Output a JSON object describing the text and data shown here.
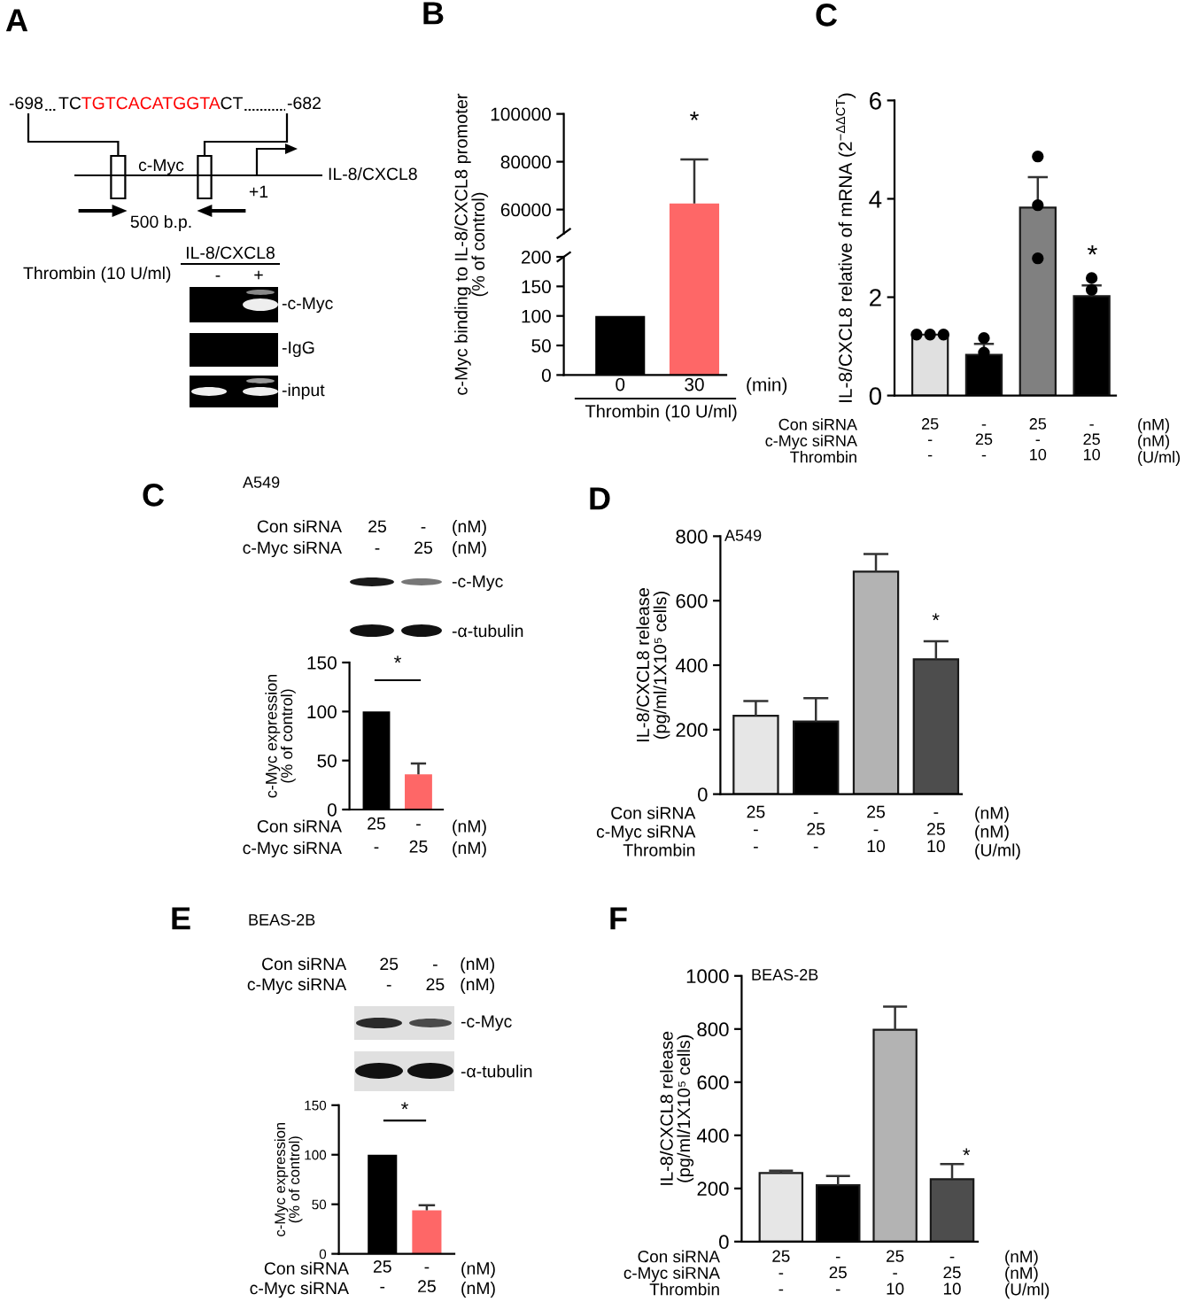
{
  "chart_data": [
    {
      "type": "other",
      "title": "A",
      "annotations": [
        "-698",
        "TC",
        "TGTCACATGGTA",
        "CT",
        "-682",
        "c-Myc",
        "IL-8/CXCL8",
        "+1",
        "500 b.p.",
        "IL-8/CXCL8",
        "Thrombin (10 U/ml)",
        "-",
        "+",
        "-c-Myc",
        "-IgG",
        "-input"
      ]
    },
    {
      "type": "bar",
      "title": "B",
      "ylabel": "c-Myc binding to IL-8/CXCL8 promoter\n(% of control)",
      "categories": [
        "0",
        "30"
      ],
      "values": [
        null,
        62500
      ],
      "colors": [
        "#000000",
        "#fe6767"
      ],
      "errors": [
        null,
        [
          62500,
          81000
        ]
      ],
      "ylim": [
        50000,
        100000
      ],
      "yticks": [
        60000,
        80000,
        100000
      ],
      "tick_labels": "y",
      "annotations": [
        "*"
      ]
    },
    {
      "type": "bar",
      "xlabel": "Thrombin (10 U/ml)",
      "categories": [
        "0",
        "30"
      ],
      "values": [
        100,
        null
      ],
      "colors": [
        "#000000",
        "#fe6767"
      ],
      "ylim": [
        0,
        200
      ],
      "yticks": [
        0,
        50,
        100,
        150,
        200
      ],
      "annotations": [
        "(min)"
      ]
    },
    {
      "type": "bar",
      "title": "C",
      "ylabel": "IL-8/CXCL8 relative of mRNA (2$^{−ΔΔCT}$)",
      "categories": [
        "25\n-\n-",
        "-\n25\n-",
        "25\n-\n10",
        "-\n25\n10"
      ],
      "series": [
        {
          "type": "bar",
          "colors": [
            "#e0e0e0",
            "#000000",
            "#808080",
            "#000000"
          ],
          "values": [
            1.24,
            0.83,
            3.82,
            2.02
          ],
          "errors": [
            null,
            [
              0.83,
              1.05
            ],
            [
              3.82,
              4.44
            ],
            [
              2.02,
              2.24
            ]
          ]
        },
        {
          "type": "scatter",
          "color": "#000000",
          "marker": "circle",
          "x": [
            "25\n-\n-",
            "25\n-\n-",
            "25\n-\n-",
            "-\n25\n-",
            "-\n25\n-",
            "25\n-\n10",
            "25\n-\n10",
            "25\n-\n10",
            "-\n25\n10",
            "-\n25\n10"
          ],
          "values": [
            1.24,
            1.24,
            1.24,
            1.17,
            0.87,
            4.86,
            3.87,
            2.79,
            2.39,
            2.15
          ]
        }
      ],
      "ylim": [
        0,
        6
      ],
      "yticks": [
        0,
        2,
        4,
        6
      ],
      "annotations": [
        "Con siRNA",
        "c-Myc siRNA",
        "Thrombin",
        "(nM)",
        "(nM)",
        "(U/ml)",
        "*"
      ]
    },
    {
      "type": "bar",
      "title": "C",
      "subtitle": "A549",
      "ylabel": "c-Myc expression\n(% of control)",
      "categories": [
        "25\n-",
        "-\n25"
      ],
      "values": [
        100,
        36
      ],
      "colors": [
        "#000000",
        "#fe6767"
      ],
      "errors": [
        null,
        [
          36,
          47
        ]
      ],
      "ylim": [
        0,
        150
      ],
      "yticks": [
        0,
        50,
        100,
        150
      ],
      "annotations": [
        "Con siRNA",
        "c-Myc siRNA",
        "(nM)",
        "(nM)",
        "*",
        "Con siRNA",
        "25",
        "-",
        "(nM)",
        "c-Myc siRNA",
        "-",
        "25",
        "(nM)",
        "-c-Myc",
        "-α-tubulin"
      ]
    },
    {
      "type": "bar",
      "title": "D",
      "subtitle": "A549",
      "ylabel": "IL-8/CXCL8 release\n(pg/ml/1X10⁵ cells)",
      "categories": [
        "25\n-\n-",
        "-\n25\n-",
        "25\n-\n10",
        "-\n25\n10"
      ],
      "values": [
        243,
        225,
        690,
        418
      ],
      "colors": [
        "#e6e6e6",
        "#000000",
        "#b3b3b3",
        "#4d4d4d"
      ],
      "errors": [
        [
          243,
          289
        ],
        [
          225,
          298
        ],
        [
          690,
          745
        ],
        [
          418,
          474
        ]
      ],
      "ylim": [
        0,
        800
      ],
      "yticks": [
        0,
        200,
        400,
        600,
        800
      ],
      "annotations": [
        "Con siRNA",
        "c-Myc siRNA",
        "Thrombin",
        "(nM)",
        "(nM)",
        "(U/ml)",
        "*"
      ]
    },
    {
      "type": "bar",
      "title": "E",
      "subtitle": "BEAS-2B",
      "ylabel": "c-Myc expression\n(% of control)",
      "categories": [
        "25\n-",
        "-\n25"
      ],
      "values": [
        100,
        44
      ],
      "colors": [
        "#000000",
        "#fe6767"
      ],
      "errors": [
        null,
        [
          44,
          49
        ]
      ],
      "ylim": [
        0,
        150
      ],
      "yticks": [
        0,
        50,
        100,
        150
      ],
      "annotations": [
        "Con siRNA",
        "c-Myc siRNA",
        "(nM)",
        "(nM)",
        "*",
        "Con siRNA",
        "25",
        "-",
        "(nM)",
        "c-Myc siRNA",
        "-",
        "25",
        "(nM)",
        "-c-Myc",
        "-α-tubulin"
      ]
    },
    {
      "type": "bar",
      "title": "F",
      "subtitle": "BEAS-2B",
      "ylabel": "IL-8/CXCL8 release\n(pg/ml/1X10⁵ cells)",
      "categories": [
        "25\n-\n-",
        "-\n25\n-",
        "25\n-\n10",
        "-\n25\n10"
      ],
      "values": [
        258,
        212,
        797,
        235
      ],
      "colors": [
        "#e6e6e6",
        "#000000",
        "#b3b3b3",
        "#4d4d4d"
      ],
      "errors": [
        [
          258,
          267
        ],
        [
          212,
          247
        ],
        [
          797,
          884
        ],
        [
          235,
          292
        ]
      ],
      "ylim": [
        0,
        1000
      ],
      "yticks": [
        0,
        200,
        400,
        600,
        800,
        1000
      ],
      "annotations": [
        "Con siRNA",
        "c-Myc siRNA",
        "Thrombin",
        "(nM)",
        "(nM)",
        "(U/ml)",
        "*"
      ]
    }
  ]
}
